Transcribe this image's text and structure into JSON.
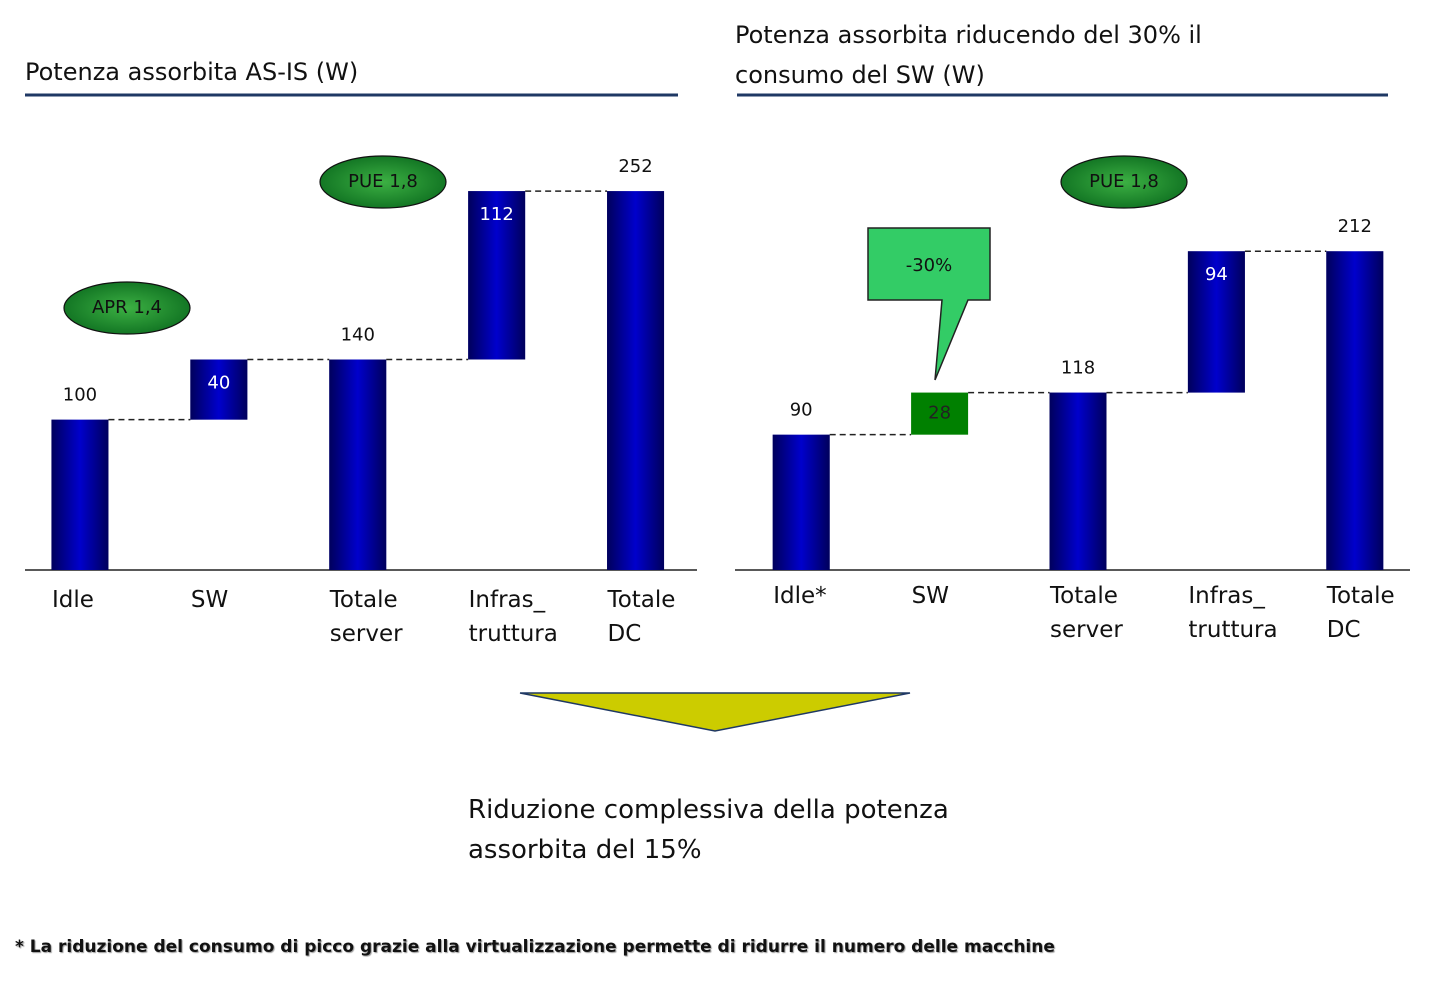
{
  "chart_data": [
    {
      "type": "waterfall",
      "title": "Potenza assorbita AS-IS (W)",
      "categories": [
        "Idle",
        "SW",
        "Totale server",
        "Infras_ truttura",
        "Totale DC"
      ],
      "values": [
        100,
        40,
        140,
        112,
        252
      ],
      "measures": [
        "absolute",
        "relative",
        "total",
        "relative",
        "total"
      ],
      "colors": [
        "#0000cc",
        "#0000cc",
        "#0000cc",
        "#0000cc",
        "#0000cc"
      ],
      "ylim": [
        0,
        280
      ],
      "annotations": [
        "APR 1,4",
        "PUE 1,8"
      ]
    },
    {
      "type": "waterfall",
      "title": "Potenza assorbita riducendo del 30% il consumo del SW (W)",
      "categories": [
        "Idle*",
        "SW",
        "Totale server",
        "Infras_ truttura",
        "Totale DC"
      ],
      "values": [
        90,
        28,
        118,
        94,
        212
      ],
      "measures": [
        "absolute",
        "relative",
        "total",
        "relative",
        "total"
      ],
      "colors": [
        "#0000cc",
        "#008000",
        "#0000cc",
        "#0000cc",
        "#0000cc"
      ],
      "ylim": [
        0,
        280
      ],
      "annotations": [
        "PUE 1,8",
        "-30%"
      ]
    }
  ],
  "summary": "Riduzione complessiva della potenza assorbita del 15%",
  "footnote": "* La riduzione del consumo di picco grazie alla virtualizzazione permette di ridurre il numero delle macchine"
}
